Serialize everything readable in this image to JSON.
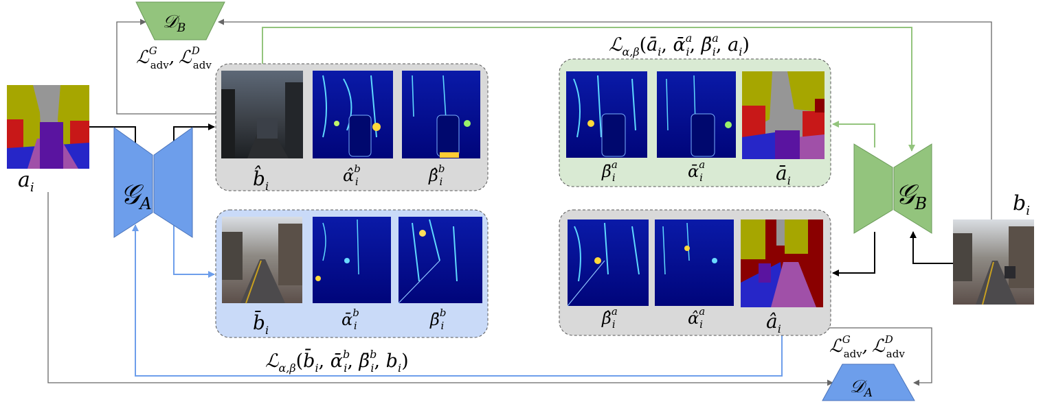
{
  "colors": {
    "blue": "#6d9eeb",
    "green": "#93c47d",
    "gray_panel": "#d9d9d9",
    "green_panel": "#d9ead3",
    "blue_panel": "#c9daf8",
    "line_gray": "#666666",
    "black": "#000000"
  },
  "generators": {
    "ga": {
      "symbol": "𝒢",
      "sub": "A"
    },
    "gb": {
      "symbol": "𝒢",
      "sub": "B"
    }
  },
  "discriminators": {
    "db": {
      "symbol": "𝒟",
      "sub": "B"
    },
    "da": {
      "symbol": "𝒟",
      "sub": "A"
    }
  },
  "adv_loss": {
    "L": "ℒ",
    "G_sup": "G",
    "D_sup": "D",
    "sub": "adv",
    "comma": ","
  },
  "inputs": {
    "a": {
      "base": "a",
      "sub": "i"
    },
    "b": {
      "base": "b",
      "sub": "i"
    }
  },
  "panels": {
    "top_left": {
      "labels": [
        {
          "base": "b̂",
          "sub": "i",
          "sup": ""
        },
        {
          "base": "α̂",
          "sub": "i",
          "sup": "b"
        },
        {
          "base": "β̂",
          "sub": "i",
          "sup": "b"
        }
      ]
    },
    "bottom_left": {
      "labels": [
        {
          "base": "b̄",
          "sub": "i",
          "sup": ""
        },
        {
          "base": "ᾱ",
          "sub": "i",
          "sup": "b"
        },
        {
          "base": "β̄",
          "sub": "i",
          "sup": "b"
        }
      ]
    },
    "top_right": {
      "labels": [
        {
          "base": "β̄",
          "sub": "i",
          "sup": "a"
        },
        {
          "base": "ᾱ",
          "sub": "i",
          "sup": "a"
        },
        {
          "base": "ā",
          "sub": "i",
          "sup": ""
        }
      ]
    },
    "bottom_right": {
      "labels": [
        {
          "base": "β̂",
          "sub": "i",
          "sup": "a"
        },
        {
          "base": "α̂",
          "sub": "i",
          "sup": "a"
        },
        {
          "base": "â",
          "sub": "i",
          "sup": ""
        }
      ]
    }
  },
  "cycle_losses": {
    "top": {
      "L": "ℒ",
      "sub": "α,β",
      "open": "(",
      "t1": "ā",
      "t1_sub": "i",
      "t2": "ᾱ",
      "t2_sub": "i",
      "t2_sup": "a",
      "t3": "β̄",
      "t3_sub": "i",
      "t3_sup": "a",
      "t4": "a",
      "t4_sub": "i",
      "sep": ", ",
      "close": ")"
    },
    "bottom": {
      "L": "ℒ",
      "sub": "α,β",
      "open": "(",
      "t1": "b̄",
      "t1_sub": "i",
      "t2": "ᾱ",
      "t2_sub": "i",
      "t2_sup": "b",
      "t3": "β̄",
      "t3_sub": "i",
      "t3_sup": "b",
      "t4": "b",
      "t4_sub": "i",
      "sep": ", ",
      "close": ")"
    }
  }
}
